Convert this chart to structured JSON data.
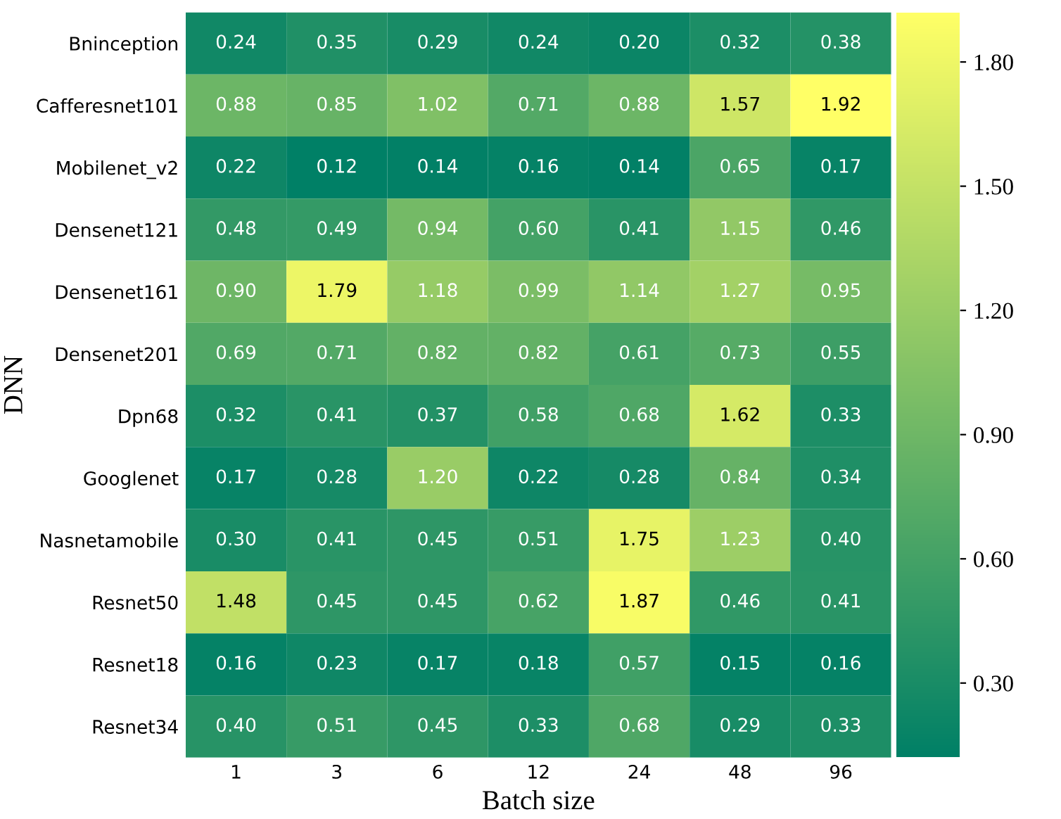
{
  "chart_data": {
    "type": "heatmap",
    "xlabel": "Batch size",
    "ylabel": "DNN",
    "categories": [
      "1",
      "3",
      "6",
      "12",
      "24",
      "48",
      "96"
    ],
    "y_categories": [
      "Bninception",
      "Cafferesnet101",
      "Mobilenet_v2",
      "Densenet121",
      "Densenet161",
      "Densenet201",
      "Dpn68",
      "Googlenet",
      "Nasnetamobile",
      "Resnet50",
      "Resnet18",
      "Resnet34"
    ],
    "cells": [
      [
        0.24,
        0.35,
        0.29,
        0.24,
        0.2,
        0.32,
        0.38
      ],
      [
        0.88,
        0.85,
        1.02,
        0.71,
        0.88,
        1.57,
        1.92
      ],
      [
        0.22,
        0.12,
        0.14,
        0.16,
        0.14,
        0.65,
        0.17
      ],
      [
        0.48,
        0.49,
        0.94,
        0.6,
        0.41,
        1.15,
        0.46
      ],
      [
        0.9,
        1.79,
        1.18,
        0.99,
        1.14,
        1.27,
        0.95
      ],
      [
        0.69,
        0.71,
        0.82,
        0.82,
        0.61,
        0.73,
        0.55
      ],
      [
        0.32,
        0.41,
        0.37,
        0.58,
        0.68,
        1.62,
        0.33
      ],
      [
        0.17,
        0.28,
        1.2,
        0.22,
        0.28,
        0.84,
        0.34
      ],
      [
        0.3,
        0.41,
        0.45,
        0.51,
        1.75,
        1.23,
        0.4
      ],
      [
        1.48,
        0.45,
        0.45,
        0.62,
        1.87,
        0.46,
        0.41
      ],
      [
        0.16,
        0.23,
        0.17,
        0.18,
        0.57,
        0.15,
        0.16
      ],
      [
        0.4,
        0.51,
        0.45,
        0.33,
        0.68,
        0.29,
        0.33
      ]
    ],
    "cell_labels": [
      [
        "0.24",
        "0.35",
        "0.29",
        "0.24",
        "0.20",
        "0.32",
        "0.38"
      ],
      [
        "0.88",
        "0.85",
        "1.02",
        "0.71",
        "0.88",
        "1.57",
        "1.92"
      ],
      [
        "0.22",
        "0.12",
        "0.14",
        "0.16",
        "0.14",
        "0.65",
        "0.17"
      ],
      [
        "0.48",
        "0.49",
        "0.94",
        "0.60",
        "0.41",
        "1.15",
        "0.46"
      ],
      [
        "0.90",
        "1.79",
        "1.18",
        "0.99",
        "1.14",
        "1.27",
        "0.95"
      ],
      [
        "0.69",
        "0.71",
        "0.82",
        "0.82",
        "0.61",
        "0.73",
        "0.55"
      ],
      [
        "0.32",
        "0.41",
        "0.37",
        "0.58",
        "0.68",
        "1.62",
        "0.33"
      ],
      [
        "0.17",
        "0.28",
        "1.20",
        "0.22",
        "0.28",
        "0.84",
        "0.34"
      ],
      [
        "0.30",
        "0.41",
        "0.45",
        "0.51",
        "1.75",
        "1.23",
        "0.40"
      ],
      [
        "1.48",
        "0.45",
        "0.45",
        "0.62",
        "1.87",
        "0.46",
        "0.41"
      ],
      [
        "0.16",
        "0.23",
        "0.17",
        "0.18",
        "0.57",
        "0.15",
        "0.16"
      ],
      [
        "0.40",
        "0.51",
        "0.45",
        "0.33",
        "0.68",
        "0.29",
        "0.33"
      ]
    ],
    "clim": [
      0.12,
      1.92
    ],
    "cticks": [
      {
        "value": 0.3,
        "label": "0.30"
      },
      {
        "value": 0.6,
        "label": "0.60"
      },
      {
        "value": 0.9,
        "label": "0.90"
      },
      {
        "value": 1.2,
        "label": "1.20"
      },
      {
        "value": 1.5,
        "label": "1.50"
      },
      {
        "value": 1.8,
        "label": "1.80"
      }
    ]
  }
}
